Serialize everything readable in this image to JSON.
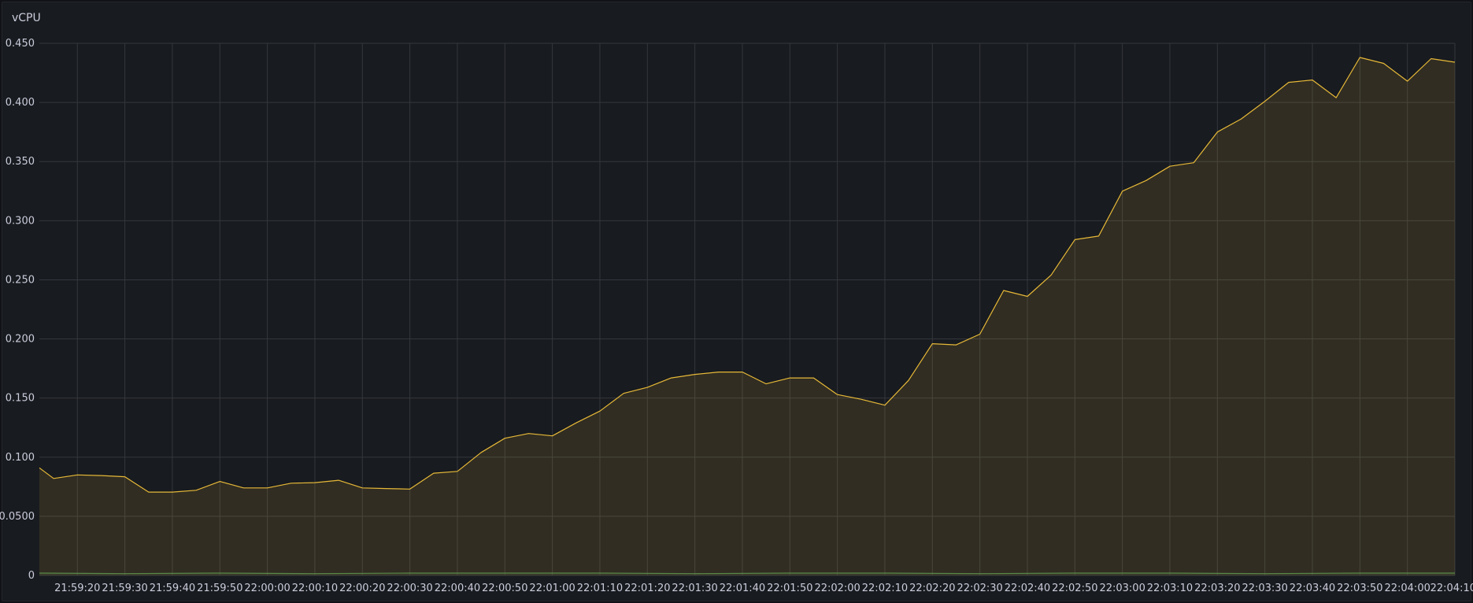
{
  "panel": {
    "title": "vCPU"
  },
  "colors": {
    "background": "#181b1f",
    "grid": "#34373d",
    "text": "#ccccdc",
    "series_primary": "#e6b838",
    "series_secondary": "#5a8a4a"
  },
  "chart_data": {
    "type": "area",
    "title": "vCPU",
    "xlabel": "",
    "ylabel": "",
    "ylim": [
      0,
      0.45
    ],
    "yticks": [
      0,
      0.05,
      0.1,
      0.15,
      0.2,
      0.25,
      0.3,
      0.35,
      0.4,
      0.45
    ],
    "ytick_labels": [
      "0",
      "0.0500",
      "0.100",
      "0.150",
      "0.200",
      "0.250",
      "0.300",
      "0.350",
      "0.400",
      "0.450"
    ],
    "xlim": [
      "21:59:12",
      "22:04:10"
    ],
    "xticks": [
      "21:59:20",
      "21:59:30",
      "21:59:40",
      "21:59:50",
      "22:00:00",
      "22:00:10",
      "22:00:20",
      "22:00:30",
      "22:00:40",
      "22:00:50",
      "22:01:00",
      "22:01:10",
      "22:01:20",
      "22:01:30",
      "22:01:40",
      "22:01:50",
      "22:02:00",
      "22:02:10",
      "22:02:20",
      "22:02:30",
      "22:02:40",
      "22:02:50",
      "22:03:00",
      "22:03:10",
      "22:03:20",
      "22:03:30",
      "22:03:40",
      "22:03:50",
      "22:04:00",
      "22:04:10"
    ],
    "grid": true,
    "legend": "none",
    "series": [
      {
        "x": [
          "21:59:12",
          "21:59:15",
          "21:59:20",
          "21:59:25",
          "21:59:30",
          "21:59:35",
          "21:59:40",
          "21:59:45",
          "21:59:50",
          "21:59:55",
          "22:00:00",
          "22:00:05",
          "22:00:10",
          "22:00:15",
          "22:00:20",
          "22:00:25",
          "22:00:30",
          "22:00:35",
          "22:00:40",
          "22:00:45",
          "22:00:50",
          "22:00:55",
          "22:01:00",
          "22:01:05",
          "22:01:10",
          "22:01:15",
          "22:01:20",
          "22:01:25",
          "22:01:30",
          "22:01:35",
          "22:01:40",
          "22:01:45",
          "22:01:50",
          "22:01:55",
          "22:02:00",
          "22:02:05",
          "22:02:10",
          "22:02:15",
          "22:02:20",
          "22:02:25",
          "22:02:30",
          "22:02:35",
          "22:02:40",
          "22:02:45",
          "22:02:50",
          "22:02:55",
          "22:03:00",
          "22:03:05",
          "22:03:10",
          "22:03:15",
          "22:03:20",
          "22:03:25",
          "22:03:30",
          "22:03:35",
          "22:03:40",
          "22:03:45",
          "22:03:50",
          "22:03:55",
          "22:04:00",
          "22:04:05",
          "22:04:10"
        ],
        "values": [
          0.091,
          0.082,
          0.085,
          0.0845,
          0.0835,
          0.0705,
          0.0705,
          0.072,
          0.0795,
          0.074,
          0.074,
          0.078,
          0.0785,
          0.0805,
          0.074,
          0.0735,
          0.073,
          0.0865,
          0.088,
          0.104,
          0.116,
          0.12,
          0.118,
          0.129,
          0.139,
          0.154,
          0.159,
          0.167,
          0.17,
          0.172,
          0.172,
          0.162,
          0.167,
          0.167,
          0.153,
          0.149,
          0.144,
          0.165,
          0.196,
          0.195,
          0.204,
          0.241,
          0.236,
          0.254,
          0.284,
          0.287,
          0.325,
          0.334,
          0.346,
          0.349,
          0.375,
          0.386,
          0.401,
          0.417,
          0.419,
          0.404,
          0.438,
          0.433,
          0.418,
          0.437,
          0.434
        ]
      },
      {
        "x": [
          "21:59:12",
          "21:59:30",
          "21:59:50",
          "22:00:10",
          "22:00:30",
          "22:00:50",
          "22:01:10",
          "22:01:30",
          "22:01:50",
          "22:02:10",
          "22:02:30",
          "22:02:50",
          "22:03:10",
          "22:03:30",
          "22:03:50",
          "22:04:10"
        ],
        "values": [
          0.002,
          0.0015,
          0.002,
          0.0015,
          0.002,
          0.002,
          0.002,
          0.0015,
          0.002,
          0.002,
          0.0015,
          0.002,
          0.002,
          0.0015,
          0.002,
          0.002
        ]
      }
    ]
  }
}
